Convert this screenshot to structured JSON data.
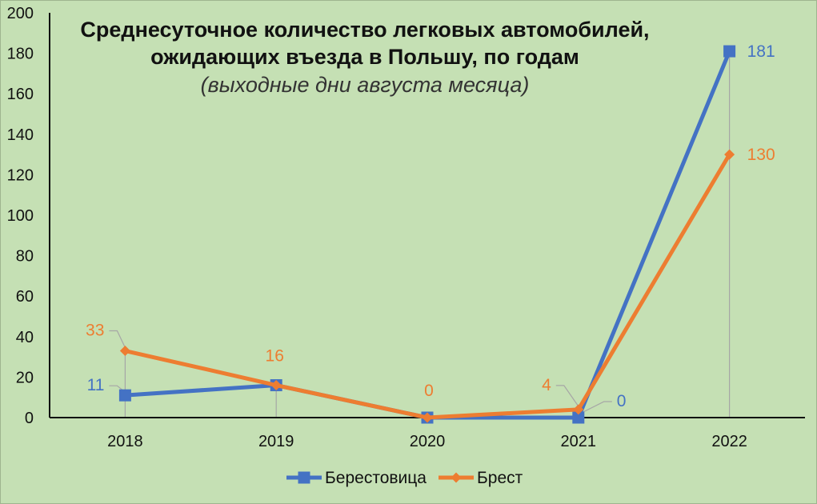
{
  "chart_data": {
    "type": "line",
    "title_line1": "Среднесуточное  количество легковых  автомобилей,",
    "title_line2": "ожидающих въезда в Польшу, по годам",
    "subtitle": "(выходные дни августа месяца)",
    "categories": [
      "2018",
      "2019",
      "2020",
      "2021",
      "2022"
    ],
    "ylim": [
      0,
      200
    ],
    "yticks": [
      0,
      20,
      40,
      60,
      80,
      100,
      120,
      140,
      160,
      180,
      200
    ],
    "grid": false,
    "drop_lines": true,
    "legend_position": "bottom",
    "series": [
      {
        "name": "Берестовица",
        "values": [
          11,
          16,
          0,
          0,
          181
        ],
        "labels": [
          "11",
          "",
          "",
          "0",
          "181"
        ],
        "color": "#4472c4",
        "marker": "square"
      },
      {
        "name": "Брест",
        "values": [
          33,
          16,
          0,
          4,
          130
        ],
        "labels": [
          "33",
          "16",
          "0",
          "4",
          "130"
        ],
        "color": "#ed7d31",
        "marker": "diamond"
      }
    ]
  }
}
